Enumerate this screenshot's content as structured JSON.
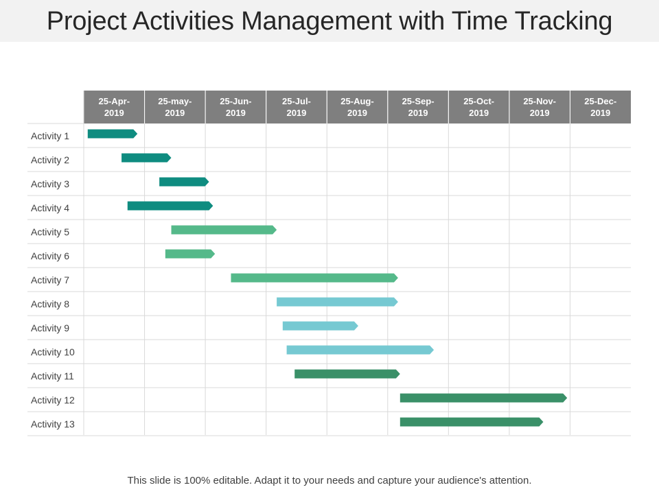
{
  "title": "Project Activities Management with Time Tracking",
  "footer": "This slide is 100% editable. Adapt it to your needs and capture your audience's attention.",
  "colors": {
    "header_bg": "#7f7f7f",
    "header_text": "#ffffff",
    "teal": "#0f8c80",
    "green": "#55b98a",
    "light_blue": "#76c9d2",
    "dark_green": "#3a9068"
  },
  "chart_data": {
    "type": "gantt",
    "title": "Project Activities Management with Time Tracking",
    "columns": [
      [
        "25-Apr-",
        "2019"
      ],
      [
        "25-may-",
        "2019"
      ],
      [
        "25-Jun-",
        "2019"
      ],
      [
        "25-Jul-",
        "2019"
      ],
      [
        "25-Aug-",
        "2019"
      ],
      [
        "25-Sep-",
        "2019"
      ],
      [
        "25-Oct-",
        "2019"
      ],
      [
        "25-Nov-",
        "2019"
      ],
      [
        "25-Dec-",
        "2019"
      ]
    ],
    "tasks": [
      {
        "label": "Activity 1",
        "start": "2019-04-27",
        "end": "2019-05-22",
        "color": "teal"
      },
      {
        "label": "Activity 2",
        "start": "2019-05-14",
        "end": "2019-06-08",
        "color": "teal"
      },
      {
        "label": "Activity 3",
        "start": "2019-06-02",
        "end": "2019-06-27",
        "color": "teal"
      },
      {
        "label": "Activity 4",
        "start": "2019-05-17",
        "end": "2019-06-29",
        "color": "teal"
      },
      {
        "label": "Activity 5",
        "start": "2019-06-08",
        "end": "2019-07-31",
        "color": "green"
      },
      {
        "label": "Activity 6",
        "start": "2019-06-05",
        "end": "2019-06-30",
        "color": "green"
      },
      {
        "label": "Activity 7",
        "start": "2019-07-08",
        "end": "2019-09-30",
        "color": "green"
      },
      {
        "label": "Activity 8",
        "start": "2019-07-31",
        "end": "2019-09-30",
        "color": "light_blue"
      },
      {
        "label": "Activity 9",
        "start": "2019-08-03",
        "end": "2019-09-10",
        "color": "light_blue"
      },
      {
        "label": "Activity 10",
        "start": "2019-08-05",
        "end": "2019-10-18",
        "color": "light_blue"
      },
      {
        "label": "Activity 11",
        "start": "2019-08-09",
        "end": "2019-10-01",
        "color": "dark_green"
      },
      {
        "label": "Activity 12",
        "start": "2019-10-01",
        "end": "2019-12-24",
        "color": "dark_green"
      },
      {
        "label": "Activity 13",
        "start": "2019-10-01",
        "end": "2019-12-12",
        "color": "dark_green"
      }
    ],
    "grid": true
  }
}
